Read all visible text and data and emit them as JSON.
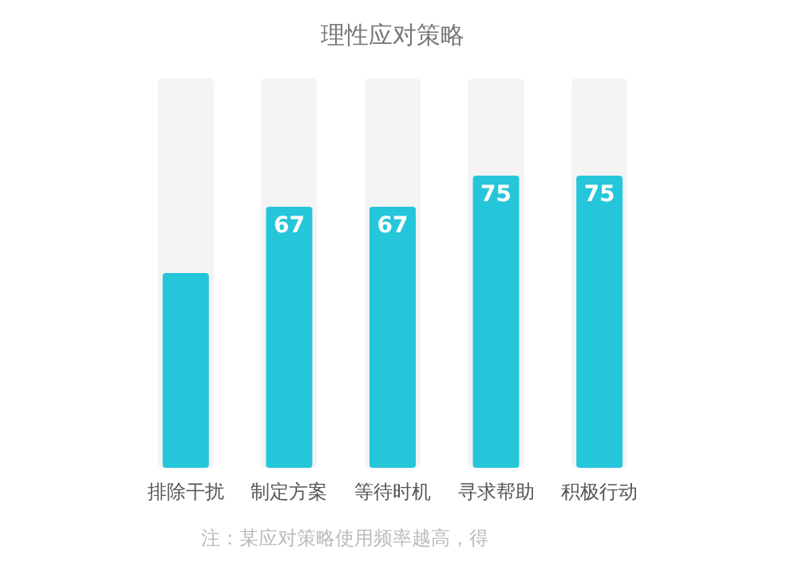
{
  "chart_data": {
    "type": "bar",
    "title": "理性应对策略",
    "categories": [
      "排除干扰",
      "制定方案",
      "等待时机",
      "寻求帮助",
      "积极行动"
    ],
    "values": [
      50,
      67,
      67,
      75,
      75
    ],
    "color": "#26c6da",
    "value_labels": [
      null,
      "67",
      "67",
      "75",
      "75"
    ],
    "ylim": [
      0,
      100
    ],
    "tick_labels": "x",
    "grid": false,
    "annotations": [
      "注：某应对策略使用频率越高，得"
    ]
  }
}
